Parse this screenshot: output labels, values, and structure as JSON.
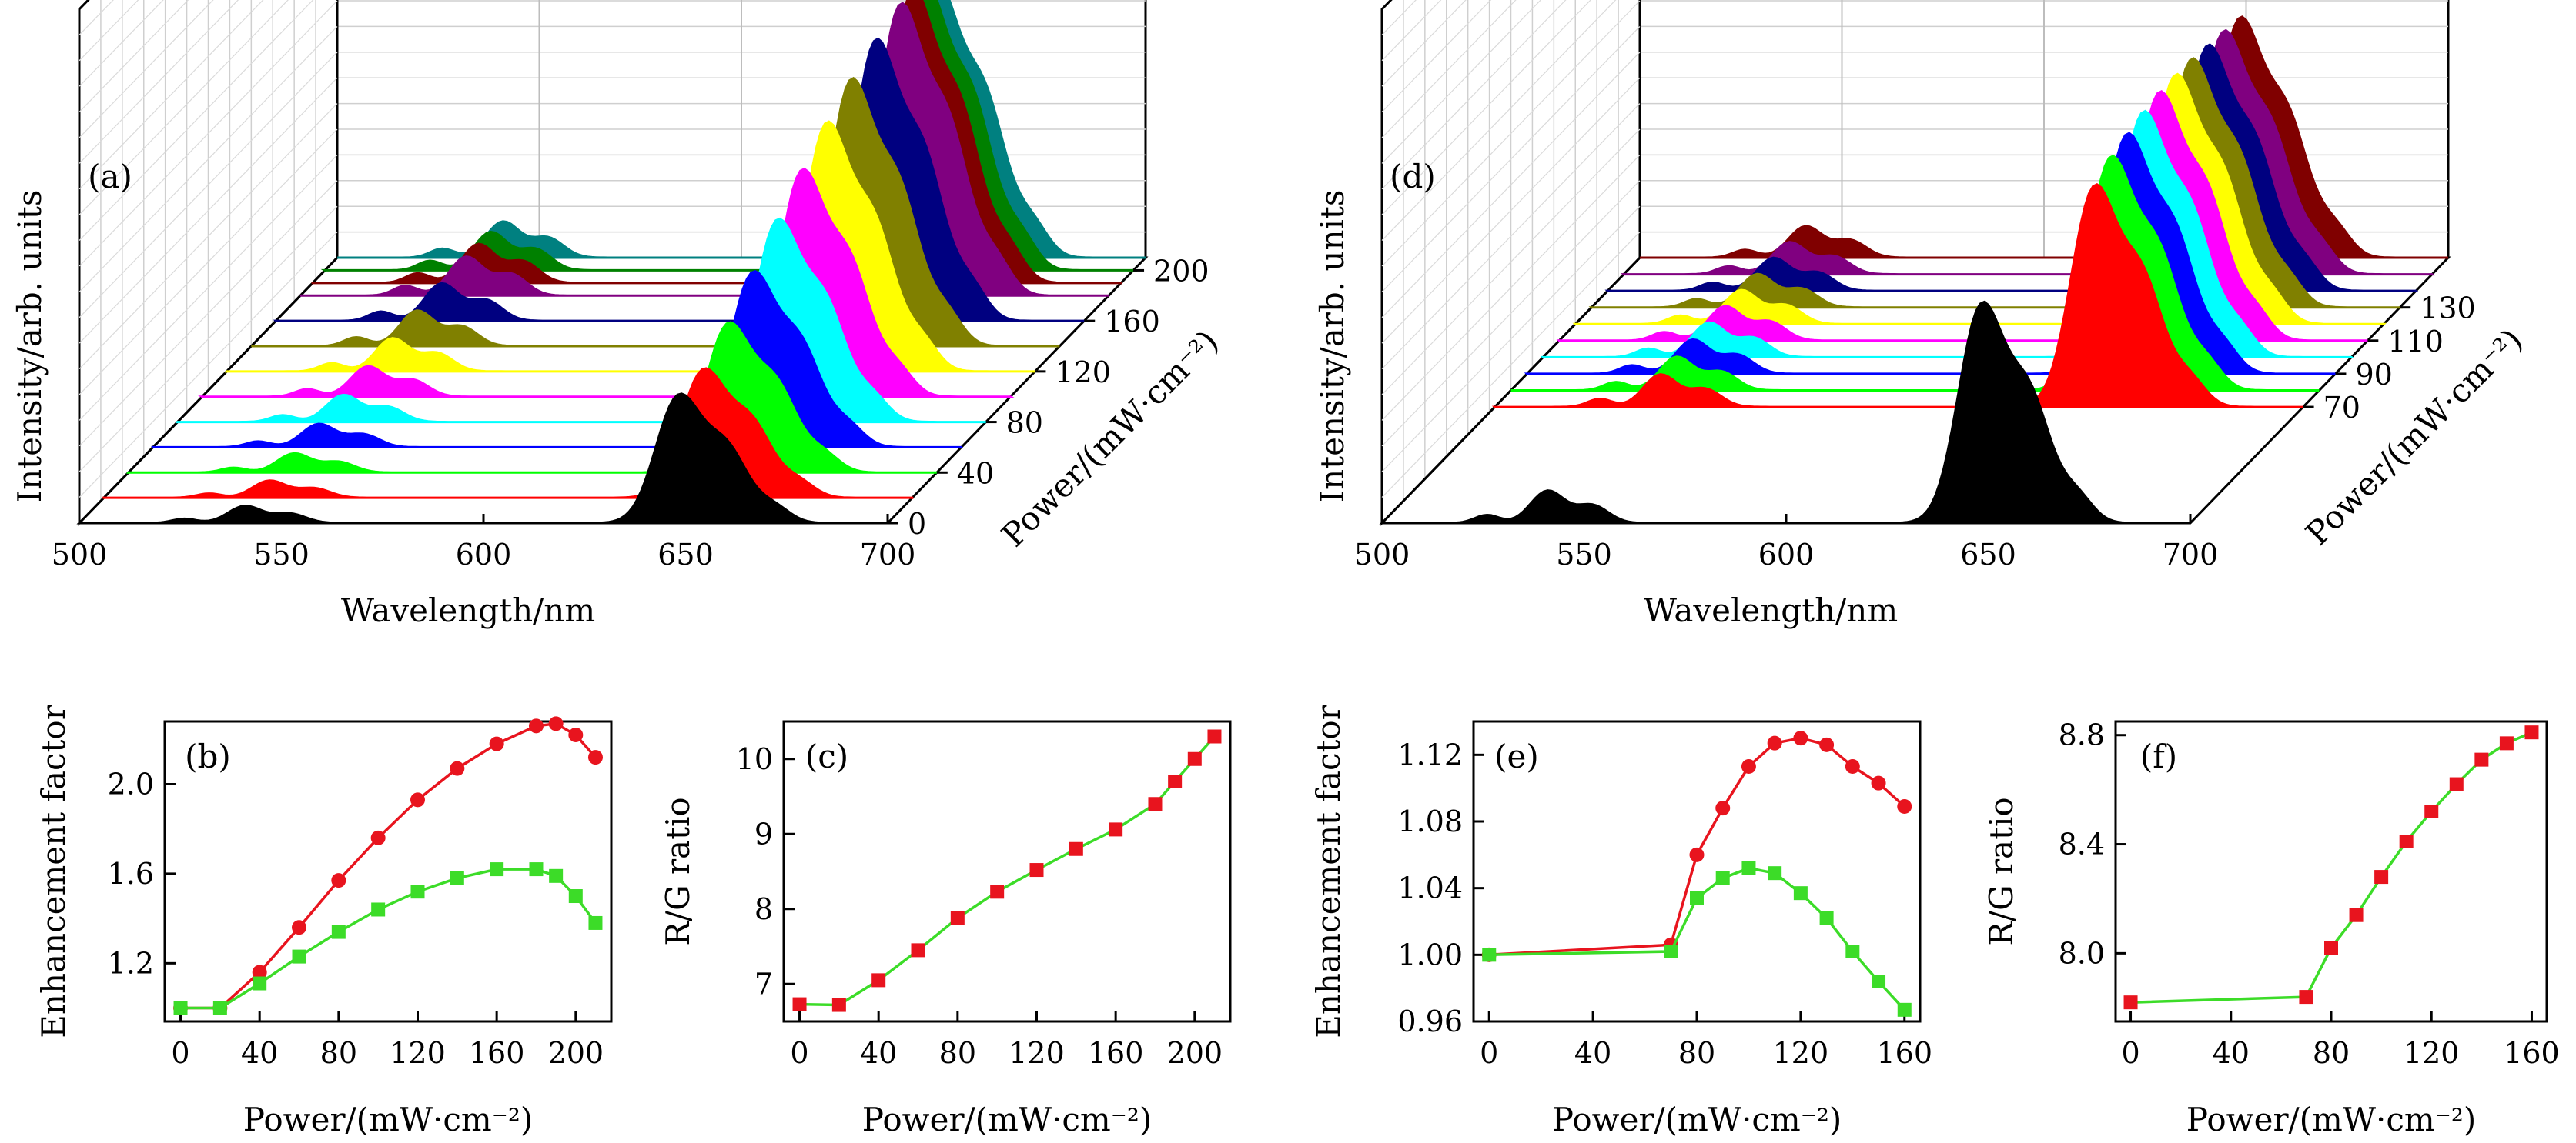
{
  "panels_3d": [
    {
      "id": "a",
      "panel_label": "(a)",
      "xlabel": "Wavelength/nm",
      "ylabel": "Intensity/arb. units",
      "zlabel": "Power/(mW·cm⁻²)",
      "x_ticks": [
        "500",
        "550",
        "600",
        "650",
        "700"
      ],
      "z_ticks": [
        "0",
        "40",
        "80",
        "120",
        "160",
        "200"
      ],
      "xlim": [
        500,
        700
      ],
      "zlim": [
        0,
        210
      ],
      "powers": [
        0,
        20,
        40,
        60,
        80,
        100,
        120,
        140,
        160,
        180,
        190,
        200,
        210
      ],
      "green_peak_rel": [
        0.14,
        0.14,
        0.156,
        0.19,
        0.22,
        0.247,
        0.27,
        0.29,
        0.305,
        0.317,
        0.317,
        0.312,
        0.295
      ],
      "red_peak_rel": [
        1.0,
        1.0,
        1.16,
        1.36,
        1.57,
        1.76,
        1.93,
        2.07,
        2.18,
        2.26,
        2.27,
        2.22,
        2.12
      ],
      "colors": [
        "#000000",
        "#ff0000",
        "#00ff00",
        "#0000ff",
        "#00ffff",
        "#ff00ff",
        "#ffff00",
        "#808000",
        "#000080",
        "#800080",
        "#800000",
        "#008000",
        "#008080"
      ]
    },
    {
      "id": "d",
      "panel_label": "(d)",
      "xlabel": "Wavelength/nm",
      "ylabel": "Intensity/arb. units",
      "zlabel": "Power/(mW·cm⁻²)",
      "x_ticks": [
        "500",
        "550",
        "600",
        "650",
        "700"
      ],
      "z_ticks": [
        "70",
        "90",
        "110",
        "130"
      ],
      "xlim": [
        500,
        700
      ],
      "zlim": [
        0,
        160
      ],
      "powers": [
        0,
        70,
        80,
        90,
        100,
        110,
        120,
        130,
        140,
        150,
        160
      ],
      "green_peak_rel": [
        0.155,
        0.155,
        0.16,
        0.163,
        0.165,
        0.164,
        0.162,
        0.159,
        0.157,
        0.153,
        0.15
      ],
      "red_peak_rel": [
        1.0,
        1.006,
        1.06,
        1.088,
        1.113,
        1.127,
        1.13,
        1.126,
        1.113,
        1.103,
        1.089
      ],
      "colors": [
        "#000000",
        "#ff0000",
        "#00ff00",
        "#0000ff",
        "#00ffff",
        "#ff00ff",
        "#ffff00",
        "#808000",
        "#000080",
        "#800080",
        "#800000"
      ]
    }
  ],
  "chart_data": [
    {
      "id": "b",
      "type": "line",
      "panel_label": "(b)",
      "xlabel": "Power/(mW·cm⁻²)",
      "ylabel": "Enhancement factor",
      "xlim": [
        -8,
        218
      ],
      "ylim": [
        0.94,
        2.28
      ],
      "x_ticks": [
        0,
        40,
        80,
        120,
        160,
        200
      ],
      "y_ticks": [
        1.2,
        1.6,
        2.0
      ],
      "y_tick_labels": [
        "1.2",
        "1.6",
        "2.0"
      ],
      "x_tick_labels": [
        "0",
        "40",
        "80",
        "120",
        "160",
        "200"
      ],
      "series": [
        {
          "color": "#e8141e",
          "marker": "circle",
          "x": [
            0,
            20,
            40,
            60,
            80,
            100,
            120,
            140,
            160,
            180,
            190,
            200,
            210
          ],
          "values": [
            1.0,
            1.0,
            1.16,
            1.36,
            1.57,
            1.76,
            1.93,
            2.07,
            2.18,
            2.26,
            2.27,
            2.22,
            2.12
          ]
        },
        {
          "color": "#3cdc28",
          "marker": "square",
          "x": [
            0,
            20,
            40,
            60,
            80,
            100,
            120,
            140,
            160,
            180,
            190,
            200,
            210
          ],
          "values": [
            1.0,
            1.0,
            1.11,
            1.23,
            1.34,
            1.44,
            1.52,
            1.58,
            1.62,
            1.62,
            1.59,
            1.5,
            1.38
          ]
        }
      ]
    },
    {
      "id": "c",
      "type": "line",
      "panel_label": "(c)",
      "xlabel": "Power/(mW·cm⁻²)",
      "ylabel": "R/G ratio",
      "xlim": [
        -8,
        218
      ],
      "ylim": [
        6.5,
        10.5
      ],
      "x_ticks": [
        0,
        40,
        80,
        120,
        160,
        200
      ],
      "y_ticks": [
        7,
        8,
        9,
        10
      ],
      "y_tick_labels": [
        "7",
        "8",
        "9",
        "10"
      ],
      "x_tick_labels": [
        "0",
        "40",
        "80",
        "120",
        "160",
        "200"
      ],
      "series": [
        {
          "color": "#3cdc28",
          "marker": "square",
          "marker_color": "#e8141e",
          "x": [
            0,
            20,
            40,
            60,
            80,
            100,
            120,
            140,
            160,
            180,
            190,
            200,
            210
          ],
          "values": [
            6.73,
            6.72,
            7.05,
            7.45,
            7.88,
            8.23,
            8.52,
            8.8,
            9.06,
            9.4,
            9.7,
            10.0,
            10.3
          ]
        }
      ]
    },
    {
      "id": "e",
      "type": "line",
      "panel_label": "(e)",
      "xlabel": "Power/(mW·cm⁻²)",
      "ylabel": "Enhancement factor",
      "xlim": [
        -6,
        166
      ],
      "ylim": [
        0.96,
        1.14
      ],
      "x_ticks": [
        0,
        40,
        80,
        120,
        160
      ],
      "y_ticks": [
        0.96,
        1.0,
        1.04,
        1.08,
        1.12
      ],
      "y_tick_labels": [
        "0.96",
        "1.00",
        "1.04",
        "1.08",
        "1.12"
      ],
      "x_tick_labels": [
        "0",
        "40",
        "80",
        "120",
        "160"
      ],
      "series": [
        {
          "color": "#e8141e",
          "marker": "circle",
          "x": [
            0,
            70,
            80,
            90,
            100,
            110,
            120,
            130,
            140,
            150,
            160
          ],
          "values": [
            1.0,
            1.006,
            1.06,
            1.088,
            1.113,
            1.127,
            1.13,
            1.126,
            1.113,
            1.103,
            1.089
          ]
        },
        {
          "color": "#3cdc28",
          "marker": "square",
          "x": [
            0,
            70,
            80,
            90,
            100,
            110,
            120,
            130,
            140,
            150,
            160
          ],
          "values": [
            1.0,
            1.002,
            1.034,
            1.046,
            1.052,
            1.049,
            1.037,
            1.022,
            1.002,
            0.984,
            0.967
          ]
        }
      ]
    },
    {
      "id": "f",
      "type": "line",
      "panel_label": "(f)",
      "xlabel": "Power/(mW·cm⁻²)",
      "ylabel": "R/G ratio",
      "xlim": [
        -6,
        166
      ],
      "ylim": [
        7.75,
        8.85
      ],
      "x_ticks": [
        0,
        40,
        80,
        120,
        160
      ],
      "y_ticks": [
        8.0,
        8.4,
        8.8
      ],
      "y_tick_labels": [
        "8.0",
        "8.4",
        "8.8"
      ],
      "x_tick_labels": [
        "0",
        "40",
        "80",
        "120",
        "160"
      ],
      "series": [
        {
          "color": "#3cdc28",
          "marker": "square",
          "marker_color": "#e8141e",
          "x": [
            0,
            70,
            80,
            90,
            100,
            110,
            120,
            130,
            140,
            150,
            160
          ],
          "values": [
            7.82,
            7.84,
            8.02,
            8.14,
            8.28,
            8.41,
            8.52,
            8.62,
            8.71,
            8.77,
            8.81
          ]
        }
      ]
    }
  ]
}
